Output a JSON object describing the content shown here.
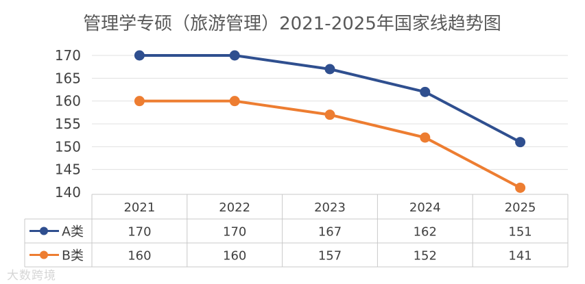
{
  "chart_data": {
    "type": "line",
    "title": "管理学专硕（旅游管理）2021-2025年国家线趋势图",
    "categories": [
      "2021",
      "2022",
      "2023",
      "2024",
      "2025"
    ],
    "series": [
      {
        "name": "A类",
        "values": [
          170,
          170,
          167,
          162,
          151
        ],
        "color": "#2f4f8f"
      },
      {
        "name": "B类",
        "values": [
          160,
          160,
          157,
          152,
          141
        ],
        "color": "#ed7d31"
      }
    ],
    "ylim": [
      140,
      170
    ],
    "yticks": [
      170,
      165,
      160,
      155,
      150,
      145,
      140
    ],
    "grid": true,
    "legend": "data-table"
  },
  "watermark": "大数跨境"
}
